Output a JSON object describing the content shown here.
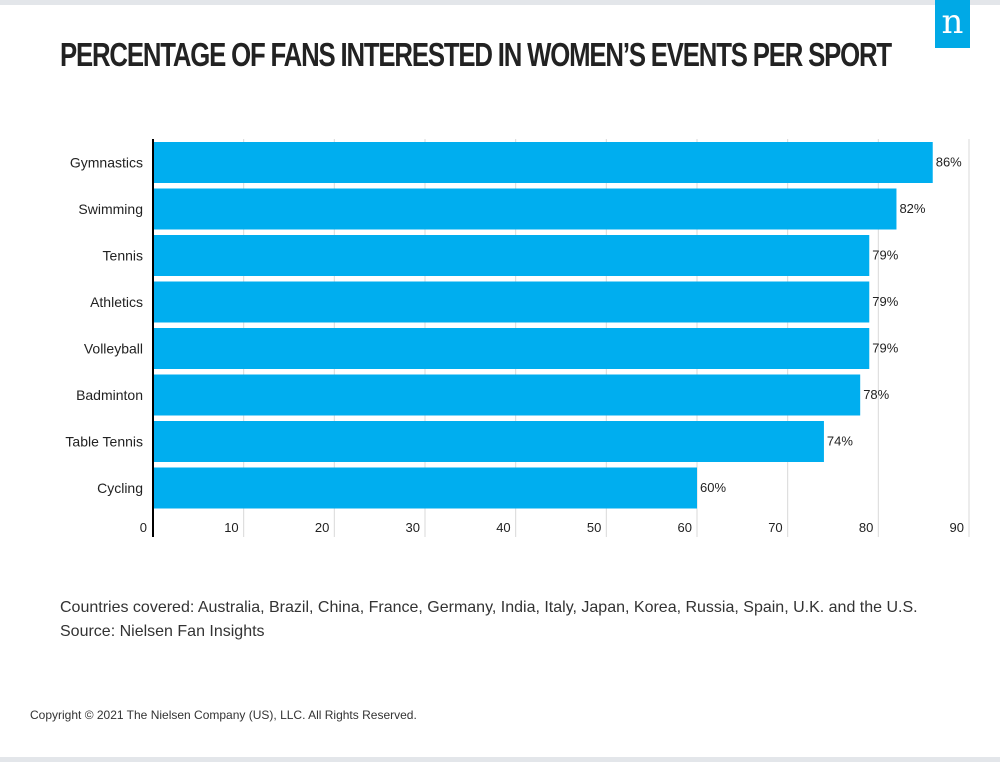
{
  "title": "PERCENTAGE OF FANS INTERESTED IN WOMEN’S EVENTS PER SPORT",
  "logo": "n",
  "chart_data": {
    "type": "bar",
    "orientation": "horizontal",
    "categories": [
      "Gymnastics",
      "Swimming",
      "Tennis",
      "Athletics",
      "Volleyball",
      "Badminton",
      "Table Tennis",
      "Cycling"
    ],
    "values": [
      86,
      82,
      79,
      79,
      79,
      78,
      74,
      60
    ],
    "data_labels": [
      "86%",
      "82%",
      "79%",
      "79%",
      "79%",
      "78%",
      "74%",
      "60%"
    ],
    "xlim": [
      0,
      90
    ],
    "xticks": [
      0,
      10,
      20,
      30,
      40,
      50,
      60,
      70,
      80,
      90
    ],
    "grid": true,
    "bar_color": "#00aeef"
  },
  "notes": {
    "countries": "Countries covered: Australia, Brazil, China, France, Germany, India, Italy, Japan, Korea, Russia, Spain, U.K. and the U.S.",
    "source": "Source: Nielsen Fan Insights"
  },
  "copyright": "Copyright © 2021 The Nielsen Company (US), LLC. All Rights Reserved."
}
